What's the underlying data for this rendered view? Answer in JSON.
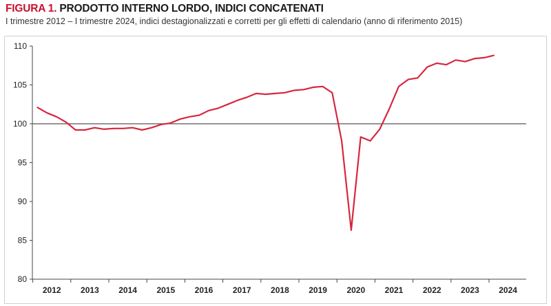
{
  "figure": {
    "label": "FIGURA 1.",
    "title": " PRODOTTO INTERNO LORDO, INDICI CONCATENATI",
    "subtitle": "I trimestre 2012 – I trimestre 2024, indici destagionalizzati e corretti per gli effetti di calendario (anno di riferimento 2015)"
  },
  "colors": {
    "series": "#d7263d",
    "reference_line": "#555555",
    "title_accent": "#c8102e"
  },
  "chart_data": {
    "type": "line",
    "title": "PRODOTTO INTERNO LORDO, INDICI CONCATENATI",
    "xlabel": "",
    "ylabel": "",
    "ylim": [
      80,
      110
    ],
    "yticks": [
      80,
      85,
      90,
      95,
      100,
      105,
      110
    ],
    "xticks": [
      "2012",
      "2013",
      "2014",
      "2015",
      "2016",
      "2017",
      "2018",
      "2019",
      "2020",
      "2021",
      "2022",
      "2023",
      "2024"
    ],
    "reference_line": 100,
    "grid": false,
    "series": [
      {
        "x": [
          "2012-Q1",
          "2012-Q2",
          "2012-Q3",
          "2012-Q4",
          "2013-Q1",
          "2013-Q2",
          "2013-Q3",
          "2013-Q4",
          "2014-Q1",
          "2014-Q2",
          "2014-Q3",
          "2014-Q4",
          "2015-Q1",
          "2015-Q2",
          "2015-Q3",
          "2015-Q4",
          "2016-Q1",
          "2016-Q2",
          "2016-Q3",
          "2016-Q4",
          "2017-Q1",
          "2017-Q2",
          "2017-Q3",
          "2017-Q4",
          "2018-Q1",
          "2018-Q2",
          "2018-Q3",
          "2018-Q4",
          "2019-Q1",
          "2019-Q2",
          "2019-Q3",
          "2019-Q4",
          "2020-Q1",
          "2020-Q2",
          "2020-Q3",
          "2020-Q4",
          "2021-Q1",
          "2021-Q2",
          "2021-Q3",
          "2021-Q4",
          "2022-Q1",
          "2022-Q2",
          "2022-Q3",
          "2022-Q4",
          "2023-Q1",
          "2023-Q2",
          "2023-Q3",
          "2023-Q4",
          "2024-Q1"
        ],
        "values": [
          102.1,
          101.4,
          100.9,
          100.2,
          99.2,
          99.2,
          99.5,
          99.3,
          99.4,
          99.4,
          99.5,
          99.2,
          99.5,
          99.9,
          100.1,
          100.6,
          100.9,
          101.1,
          101.7,
          102.0,
          102.5,
          103.0,
          103.4,
          103.9,
          103.8,
          103.9,
          104.0,
          104.3,
          104.4,
          104.7,
          104.8,
          104.0,
          97.8,
          86.3,
          98.3,
          97.8,
          99.3,
          101.9,
          104.8,
          105.7,
          105.9,
          107.3,
          107.8,
          107.6,
          108.2,
          108.0,
          108.4,
          108.5,
          108.8
        ]
      }
    ]
  }
}
